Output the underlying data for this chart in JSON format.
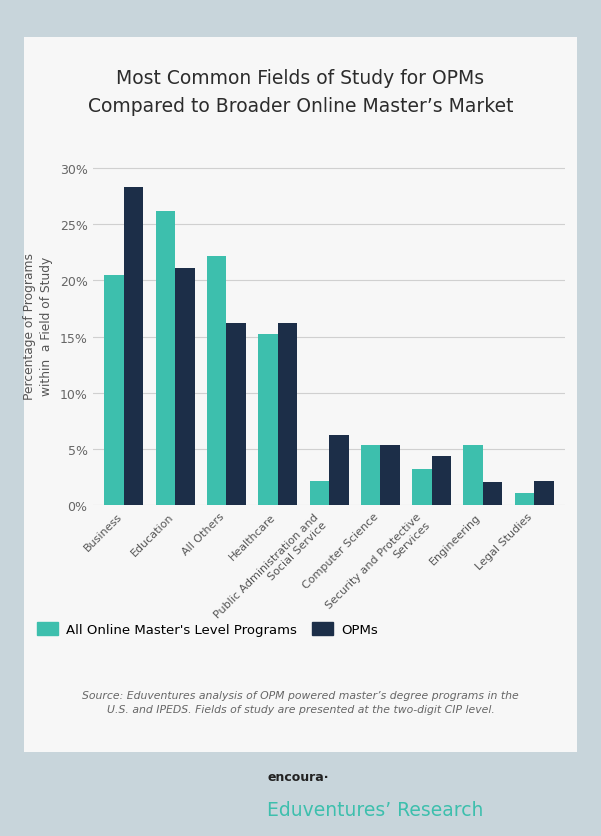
{
  "title": "Most Common Fields of Study for OPMs\nCompared to Broader Online Master’s Market",
  "categories": [
    "Business",
    "Education",
    "All Others",
    "Healthcare",
    "Public Administration and\nSocial Service",
    "Computer Science",
    "Security and Protective\nServices",
    "Engineering",
    "Legal Studies"
  ],
  "all_online": [
    20.5,
    26.2,
    22.2,
    15.2,
    2.2,
    5.4,
    3.2,
    5.4,
    1.1
  ],
  "opms": [
    28.3,
    21.1,
    16.2,
    16.2,
    6.3,
    5.4,
    4.4,
    2.1,
    2.2
  ],
  "color_all_online": "#3dbfad",
  "color_opms": "#1c2e48",
  "ylabel": "Percentage of Programs\nwithin  a Field of Study",
  "ylim": [
    0,
    32
  ],
  "yticks": [
    0,
    5,
    10,
    15,
    20,
    25,
    30
  ],
  "source_text": "Source: Eduventures analysis of OPM powered master’s degree programs in the\nU.S. and IPEDS. Fields of study are presented at the two-digit CIP level.",
  "legend_all_online": "All Online Master's Level Programs",
  "legend_opms": "OPMs",
  "bg_outer": "#c8d5db",
  "bg_inner": "#f7f7f7",
  "bar_width": 0.38
}
